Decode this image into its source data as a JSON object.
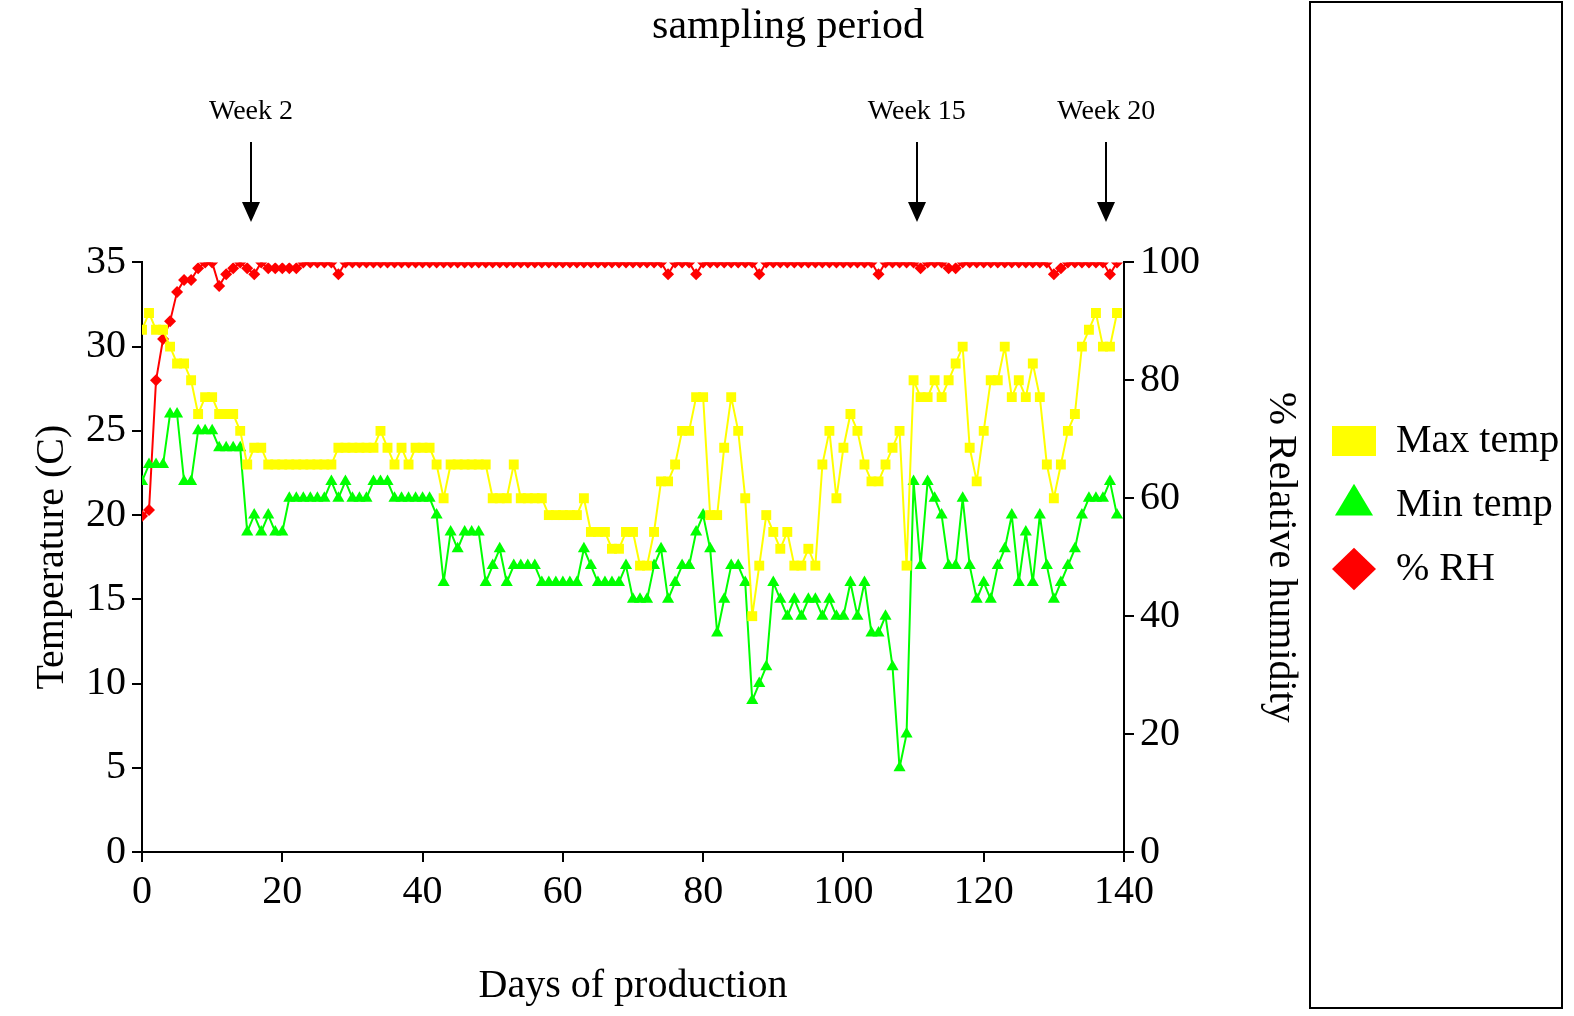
{
  "chart_data": {
    "type": "line",
    "title": "sampling period",
    "xlabel": "Days of production",
    "ylabel": "Temperature (C)",
    "y2label": "% Relative humidity",
    "x": [
      0,
      1,
      2,
      3,
      4,
      5,
      6,
      7,
      8,
      9,
      10,
      11,
      12,
      13,
      14,
      15,
      16,
      17,
      18,
      19,
      20,
      21,
      22,
      23,
      24,
      25,
      26,
      27,
      28,
      29,
      30,
      31,
      32,
      33,
      34,
      35,
      36,
      37,
      38,
      39,
      40,
      41,
      42,
      43,
      44,
      45,
      46,
      47,
      48,
      49,
      50,
      51,
      52,
      53,
      54,
      55,
      56,
      57,
      58,
      59,
      60,
      61,
      62,
      63,
      64,
      65,
      66,
      67,
      68,
      69,
      70,
      71,
      72,
      73,
      74,
      75,
      76,
      77,
      78,
      79,
      80,
      81,
      82,
      83,
      84,
      85,
      86,
      87,
      88,
      89,
      90,
      91,
      92,
      93,
      94,
      95,
      96,
      97,
      98,
      99,
      100,
      101,
      102,
      103,
      104,
      105,
      106,
      107,
      108,
      109,
      110,
      111,
      112,
      113,
      114,
      115,
      116,
      117,
      118,
      119,
      120,
      121,
      122,
      123,
      124,
      125,
      126,
      127,
      128,
      129,
      130,
      131,
      132,
      133,
      134,
      135,
      136,
      137,
      138,
      139
    ],
    "xlim": [
      0,
      140
    ],
    "xticks": [
      0,
      20,
      40,
      60,
      80,
      100,
      120,
      140
    ],
    "ylim": [
      0,
      35
    ],
    "yticks": [
      0,
      5,
      10,
      15,
      20,
      25,
      30,
      35
    ],
    "y2lim": [
      0,
      100
    ],
    "y2ticks": [
      0,
      20,
      40,
      60,
      80,
      100
    ],
    "grid": false,
    "legend": "right",
    "line_style": "solid",
    "series": [
      {
        "name": "Max temp",
        "color": "#ffff00",
        "marker": "square",
        "values": [
          31,
          32,
          31,
          31,
          30,
          29,
          29,
          28,
          26,
          27,
          27,
          26,
          26,
          26,
          25,
          23,
          24,
          24,
          23,
          23,
          23,
          23,
          23,
          23,
          23,
          23,
          23,
          23,
          24,
          24,
          24,
          24,
          24,
          24,
          25,
          24,
          23,
          24,
          23,
          24,
          24,
          24,
          23,
          21,
          23,
          23,
          23,
          23,
          23,
          23,
          21,
          21,
          21,
          23,
          21,
          21,
          21,
          21,
          20,
          20,
          20,
          20,
          20,
          21,
          19,
          19,
          19,
          18,
          18,
          19,
          19,
          17,
          17,
          19,
          22,
          22,
          23,
          25,
          25,
          27,
          27,
          20,
          20,
          24,
          27,
          25,
          21,
          14,
          17,
          20,
          19,
          18,
          19,
          17,
          17,
          18,
          17,
          23,
          25,
          21,
          24,
          26,
          25,
          23,
          22,
          22,
          23,
          24,
          25,
          17,
          28,
          27,
          27,
          28,
          27,
          28,
          29,
          30,
          24,
          22,
          25,
          28,
          28,
          30,
          27,
          28,
          27,
          29,
          27,
          23,
          21,
          23,
          25,
          26,
          30,
          31,
          32,
          30,
          30,
          32
        ]
      },
      {
        "name": "Min temp",
        "color": "#00ff00",
        "marker": "triangle",
        "values": [
          22,
          23,
          23,
          23,
          26,
          26,
          22,
          22,
          25,
          25,
          25,
          24,
          24,
          24,
          24,
          19,
          20,
          19,
          20,
          19,
          19,
          21,
          21,
          21,
          21,
          21,
          21,
          22,
          21,
          22,
          21,
          21,
          21,
          22,
          22,
          22,
          21,
          21,
          21,
          21,
          21,
          21,
          20,
          16,
          19,
          18,
          19,
          19,
          19,
          16,
          17,
          18,
          16,
          17,
          17,
          17,
          17,
          16,
          16,
          16,
          16,
          16,
          16,
          18,
          17,
          16,
          16,
          16,
          16,
          17,
          15,
          15,
          15,
          17,
          18,
          15,
          16,
          17,
          17,
          19,
          20,
          18,
          13,
          15,
          17,
          17,
          16,
          9,
          10,
          11,
          16,
          15,
          14,
          15,
          14,
          15,
          15,
          14,
          15,
          14,
          14,
          16,
          14,
          16,
          13,
          13,
          14,
          11,
          5,
          7,
          22,
          17,
          22,
          21,
          20,
          17,
          17,
          21,
          17,
          15,
          16,
          15,
          17,
          18,
          20,
          16,
          19,
          16,
          20,
          17,
          15,
          16,
          17,
          18,
          20,
          21,
          21,
          21,
          22,
          20
        ]
      },
      {
        "name": "% RH",
        "color": "#ff0000",
        "marker": "diamond",
        "axis": "y2",
        "values": [
          57,
          58,
          80,
          87,
          90,
          95,
          97,
          97,
          99,
          100,
          100,
          96,
          98,
          99,
          100,
          99,
          98,
          100,
          99,
          99,
          99,
          99,
          99,
          100,
          100,
          100,
          100,
          100,
          98,
          100,
          100,
          100,
          100,
          100,
          100,
          100,
          100,
          100,
          100,
          100,
          100,
          100,
          100,
          100,
          100,
          100,
          100,
          100,
          100,
          100,
          100,
          100,
          100,
          100,
          100,
          100,
          100,
          100,
          100,
          100,
          100,
          100,
          100,
          100,
          100,
          100,
          100,
          100,
          100,
          100,
          100,
          100,
          100,
          100,
          100,
          98,
          100,
          100,
          100,
          98,
          100,
          100,
          100,
          100,
          100,
          100,
          100,
          100,
          98,
          100,
          100,
          100,
          100,
          100,
          100,
          100,
          100,
          100,
          100,
          100,
          100,
          100,
          100,
          100,
          100,
          98,
          100,
          100,
          100,
          100,
          100,
          99,
          100,
          100,
          100,
          99,
          99,
          100,
          100,
          100,
          100,
          100,
          100,
          100,
          100,
          100,
          100,
          100,
          100,
          100,
          98,
          99,
          100,
          100,
          100,
          100,
          100,
          100,
          98,
          100
        ]
      }
    ],
    "annotations": [
      "Week 2",
      "Week 15",
      "Week 20"
    ]
  }
}
